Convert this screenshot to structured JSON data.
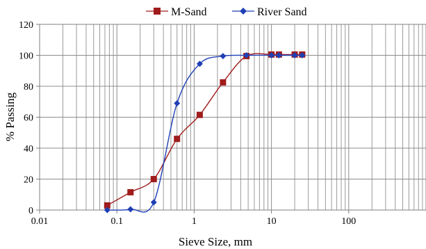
{
  "chart_data": {
    "type": "line",
    "xscale": "log",
    "xlim": [
      0.01,
      1000
    ],
    "ylim": [
      0,
      120
    ],
    "grid": true,
    "legend_position": "top",
    "xlabel": "Sieve Size, mm",
    "ylabel": "% Passing",
    "x_ticks": [
      "0.01",
      "0.1",
      "1",
      "10",
      "100"
    ],
    "x_tick_values": [
      0.01,
      0.1,
      1,
      10,
      100
    ],
    "y_ticks": [
      "0",
      "20",
      "40",
      "60",
      "80",
      "100",
      "120"
    ],
    "y_tick_values": [
      0,
      20,
      40,
      60,
      80,
      100,
      120
    ],
    "series": [
      {
        "name": "M-Sand",
        "color": "#a01c1c",
        "marker": "square",
        "x": [
          0.075,
          0.15,
          0.3,
          0.6,
          1.18,
          2.36,
          4.75,
          10,
          12.5,
          20,
          25
        ],
        "values": [
          3,
          11.5,
          20,
          46,
          61.5,
          82.5,
          99.5,
          100.5,
          100.5,
          100.5,
          100.5
        ]
      },
      {
        "name": "River Sand",
        "color": "#1f3fb5",
        "marker": "diamond",
        "x": [
          0.075,
          0.15,
          0.3,
          0.6,
          1.18,
          2.36,
          4.75,
          10,
          12.5,
          20,
          25
        ],
        "values": [
          0,
          0.5,
          5,
          69,
          94.5,
          99.5,
          100,
          100,
          100,
          100,
          100
        ]
      }
    ]
  }
}
